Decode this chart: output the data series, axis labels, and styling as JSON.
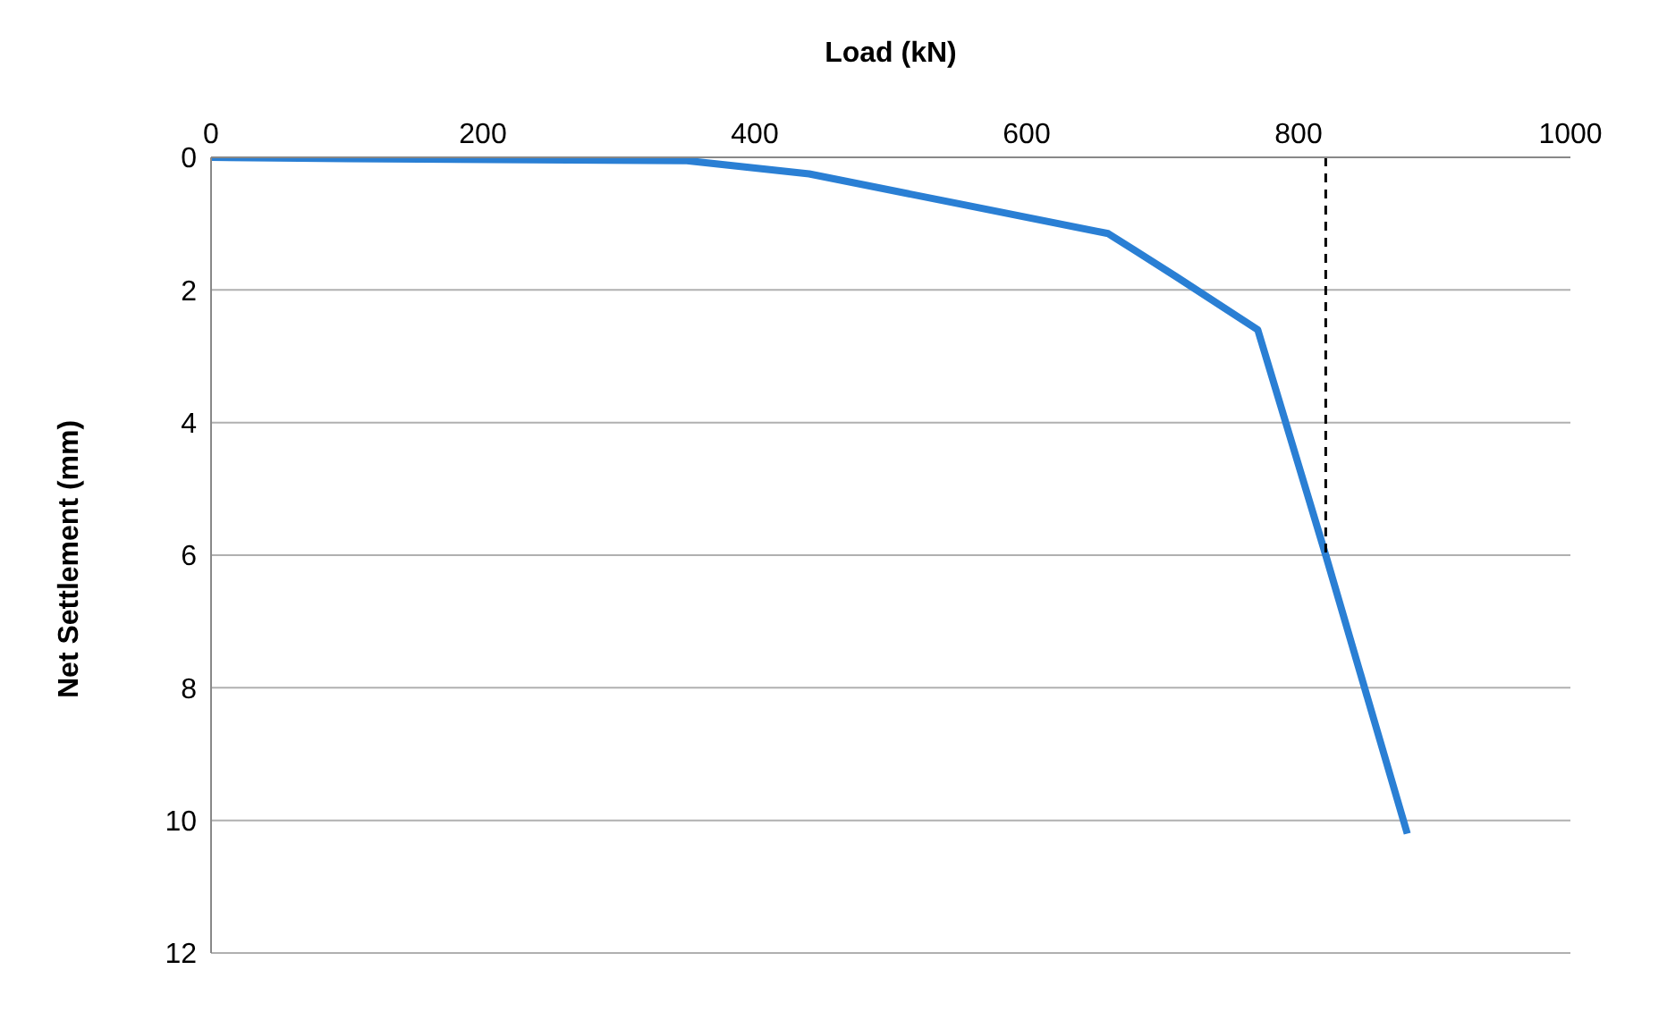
{
  "chart_data": {
    "type": "line",
    "xlabel": "Load (kN)",
    "ylabel": "Net Settlement (mm)",
    "xlim": [
      0,
      1000
    ],
    "xticks": [
      0,
      200,
      400,
      600,
      800,
      1000
    ],
    "ylim": [
      12,
      0
    ],
    "yticks": [
      0,
      2,
      4,
      6,
      8,
      10,
      12
    ],
    "grid": "y",
    "marker": "none",
    "legend": false,
    "series": [
      {
        "color": "#2a7fd4",
        "x": [
          0,
          100,
          350,
          440,
          550,
          660,
          710,
          770,
          820,
          880
        ],
        "values": [
          0,
          0.02,
          0.05,
          0.25,
          0.7,
          1.15,
          1.8,
          2.6,
          6.0,
          10.2
        ]
      },
      {
        "color": "#000000",
        "line_style": "dashed",
        "x": [
          820,
          820
        ],
        "values": [
          0,
          6.0
        ]
      }
    ]
  }
}
